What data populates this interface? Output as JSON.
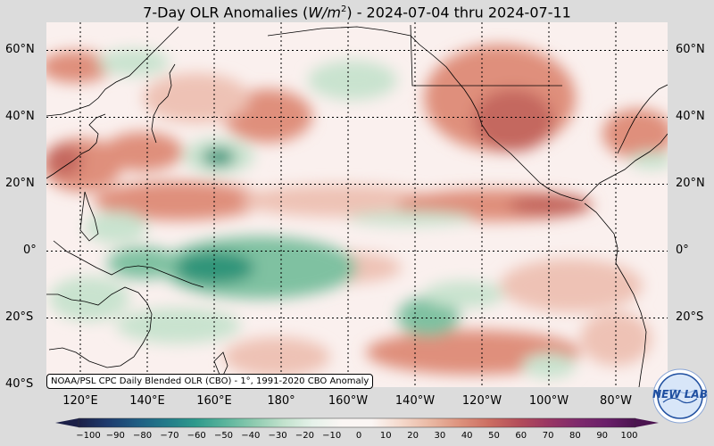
{
  "title": {
    "prefix": "7-Day OLR Anomalies (",
    "unit_base": "W/m",
    "unit_exp": "2",
    "suffix": ") - 2024-07-04 thru 2024-07-11"
  },
  "map": {
    "lat_labels": [
      "60°N",
      "40°N",
      "20°N",
      "0°",
      "20°S",
      "40°S"
    ],
    "lon_labels": [
      "120°E",
      "140°E",
      "160°E",
      "180°",
      "160°W",
      "140°W",
      "120°W",
      "100°W",
      "80°W"
    ],
    "extent": {
      "lon_min": 105,
      "lon_max": 290,
      "lat_min": -40,
      "lat_max": 67
    },
    "colors": {
      "background": "#faf0ee",
      "positive_light": "#eec2b5",
      "positive_mid": "#df8f7c",
      "positive_strong": "#c4685f",
      "negative_light": "#c9e3cf",
      "negative_mid": "#7fc1a1",
      "negative_strong": "#2e9479",
      "grid": "#000000",
      "coast": "#000000"
    }
  },
  "credit": "NOAA/PSL CPC Daily Blended OLR (CBO) - 1°, 1991-2020 CBO Anomaly",
  "colorbar": {
    "ticks": [
      "−100",
      "−90",
      "−80",
      "−70",
      "−60",
      "−50",
      "−40",
      "−30",
      "−20",
      "−10",
      "0",
      "10",
      "20",
      "30",
      "40",
      "50",
      "60",
      "70",
      "80",
      "90",
      "100"
    ],
    "stops": [
      "#1b1f47",
      "#1e3b6e",
      "#1f5d83",
      "#227b8a",
      "#2e9a8c",
      "#5ab49c",
      "#8ecbb0",
      "#c2e2cd",
      "#e6f2ea",
      "#fbf6f4",
      "#fbf6f4",
      "#f5d9cc",
      "#eab8a3",
      "#dd927d",
      "#cc6e62",
      "#b44e5a",
      "#9a3763",
      "#7f2a6c",
      "#6a1f6a",
      "#4a134f"
    ]
  },
  "logo": {
    "text": "NEW LAB"
  }
}
